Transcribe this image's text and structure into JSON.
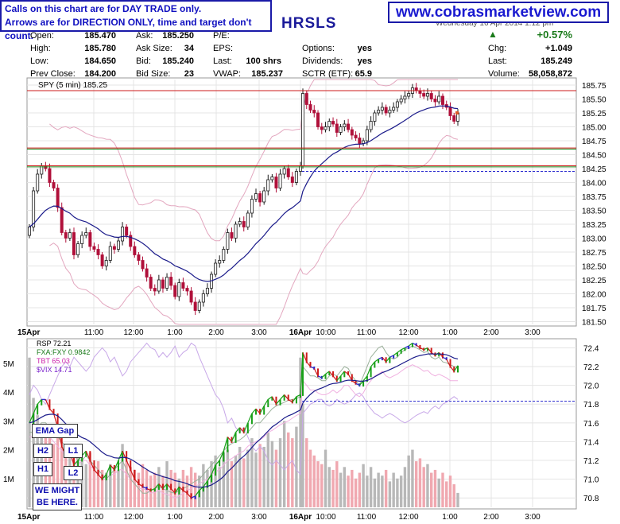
{
  "notes": {
    "line1": "Calls on this chart are for DAY TRADE only.",
    "line2": "Arrows are for DIRECTION ONLY, time and target don't count."
  },
  "site": "www.cobrasmarketview.com",
  "symbol": "HRSLS",
  "header_date": "Wednesday 16 Apr 2014 1:12 pm",
  "quote": {
    "open_l": "Open:",
    "open": "185.470",
    "high_l": "High:",
    "high": "185.780",
    "low_l": "Low:",
    "low": "184.650",
    "prev_l": "Prev Close:",
    "prev": "184.200",
    "ask_l": "Ask:",
    "ask": "185.250",
    "asksize_l": "Ask Size:",
    "asksize": "34",
    "bid_l": "Bid:",
    "bid": "185.240",
    "bidsize_l": "Bid Size:",
    "bidsize": "23",
    "pe_l": "P/E:",
    "eps_l": "EPS:",
    "last_l": "Last:",
    "last": "100 shrs",
    "vwap_l": "VWAP:",
    "vwap": "185.237",
    "options_l": "Options:",
    "options": "yes",
    "div_l": "Dividends:",
    "div": "yes",
    "sctr_l": "SCTR (ETF):",
    "sctr": "65.9",
    "pct": "+0.57%",
    "chg_l": "Chg:",
    "chg": "+1.049",
    "last2_l": "Last:",
    "last2": "185.249",
    "vol_l": "Volume:",
    "vol": "58,058,872"
  },
  "labels": {
    "ema_gap": "EMA Gap",
    "h2": "H2",
    "h1": "H1",
    "l1": "L1",
    "l2": "L2",
    "might1": "WE MIGHT",
    "might2": "BE HERE."
  },
  "colors": {
    "up": "#1a1a1a",
    "down": "#b0103a",
    "ema": "#1a1a8a",
    "bb": "#e3a7bf",
    "resist": "#cc1a1a",
    "support": "#1a8a1a",
    "rsp_up": "#18a018",
    "rsp_down": "#cc1a1a",
    "rsp_mid": "#2222cc"
  },
  "chart_data": [
    {
      "type": "candlestick",
      "title": "SPY (5 min) 185.25",
      "legend": [
        "SPY (5 min) 185.25"
      ],
      "x_ticks": [
        "15Apr",
        "11:00",
        "12:00",
        "1:00",
        "2:00",
        "3:00",
        "16Apr",
        "10:00",
        "11:00",
        "12:00",
        "1:00",
        "2:00",
        "3:00"
      ],
      "y_ticks": [
        181.5,
        181.75,
        182.0,
        182.25,
        182.5,
        182.75,
        183.0,
        183.25,
        183.5,
        183.75,
        184.0,
        184.25,
        184.5,
        184.75,
        185.0,
        185.25,
        185.5,
        185.75
      ],
      "ylim": [
        181.45,
        185.85
      ],
      "h_lines": [
        {
          "value": 185.65,
          "color": "red"
        },
        {
          "value": 184.62,
          "color": "red"
        },
        {
          "value": 184.6,
          "color": "green"
        },
        {
          "value": 184.3,
          "color": "red"
        },
        {
          "value": 184.28,
          "color": "green"
        },
        {
          "value": 184.2,
          "style": "dashed",
          "color": "blue"
        }
      ],
      "close": [
        183.2,
        183.85,
        184.15,
        184.3,
        184.25,
        184.0,
        183.9,
        183.55,
        183.1,
        183.0,
        183.1,
        182.7,
        182.9,
        183.05,
        183.1,
        182.85,
        182.8,
        182.7,
        182.5,
        182.6,
        182.85,
        182.8,
        182.95,
        183.2,
        183.05,
        182.85,
        182.7,
        182.6,
        182.45,
        182.3,
        182.1,
        182.05,
        182.25,
        182.1,
        182.3,
        182.15,
        181.95,
        182.2,
        182.1,
        182.05,
        181.85,
        181.7,
        181.85,
        182.0,
        182.1,
        182.35,
        182.55,
        182.6,
        182.8,
        183.1,
        183.0,
        183.25,
        183.3,
        183.2,
        183.45,
        183.7,
        183.8,
        183.65,
        183.85,
        184.05,
        184.1,
        183.9,
        184.15,
        184.25,
        184.1,
        184.0,
        184.2,
        184.3,
        185.6,
        185.4,
        185.3,
        185.25,
        185.0,
        184.95,
        185.0,
        185.1,
        185.05,
        184.9,
        185.0,
        185.05,
        184.95,
        184.85,
        184.8,
        184.7,
        184.75,
        184.95,
        185.1,
        185.25,
        185.3,
        185.35,
        185.25,
        185.3,
        185.35,
        185.45,
        185.5,
        185.55,
        185.6,
        185.7,
        185.65,
        185.6,
        185.55,
        185.6,
        185.5,
        185.45,
        185.55,
        185.4,
        185.35,
        185.2,
        185.1,
        185.25
      ]
    },
    {
      "type": "line",
      "legend": [
        "RSP 72.21",
        "FXA:FXY 0.9842",
        "TBT 65.03",
        "$VIX 14.71"
      ],
      "x_ticks": [
        "15Apr",
        "11:00",
        "12:00",
        "1:00",
        "2:00",
        "3:00",
        "16Apr",
        "10:00",
        "11:00",
        "12:00",
        "1:00",
        "2:00",
        "3:00"
      ],
      "y_ticks_right": [
        70.8,
        71.0,
        71.2,
        71.4,
        71.6,
        71.8,
        72.0,
        72.2,
        72.4
      ],
      "y_ticks_left": [
        "1M",
        "2M",
        "3M",
        "4M",
        "5M"
      ],
      "ylim": [
        70.7,
        72.48
      ],
      "h_lines": [
        {
          "value": 71.83,
          "style": "dashed",
          "color": "blue"
        }
      ],
      "series": [
        {
          "name": "RSP 72.21",
          "values": [
            71.6,
            71.7,
            71.8,
            71.85,
            71.85,
            71.75,
            71.7,
            71.55,
            71.35,
            71.25,
            71.3,
            71.15,
            71.2,
            71.25,
            71.3,
            71.2,
            71.1,
            71.05,
            71.0,
            71.05,
            71.15,
            71.1,
            71.2,
            71.3,
            71.2,
            71.1,
            71.0,
            70.95,
            70.92,
            70.9,
            70.88,
            70.9,
            70.95,
            70.9,
            70.95,
            70.9,
            70.85,
            70.92,
            70.88,
            70.85,
            70.8,
            70.82,
            70.88,
            70.92,
            70.98,
            71.05,
            71.15,
            71.2,
            71.3,
            71.45,
            71.4,
            71.5,
            71.55,
            71.5,
            71.6,
            71.7,
            71.75,
            71.7,
            71.78,
            71.85,
            71.88,
            71.8,
            71.85,
            71.9,
            71.85,
            71.82,
            71.88,
            71.9,
            72.35,
            72.25,
            72.2,
            72.18,
            72.1,
            72.08,
            72.12,
            72.15,
            72.1,
            72.05,
            72.1,
            72.15,
            72.12,
            72.05,
            72.02,
            72.0,
            72.05,
            72.1,
            72.2,
            72.25,
            72.28,
            72.3,
            72.25,
            72.3,
            72.32,
            72.35,
            72.38,
            72.4,
            72.42,
            72.45,
            72.43,
            72.4,
            72.38,
            72.4,
            72.35,
            72.32,
            72.35,
            72.3,
            72.28,
            72.2,
            72.15,
            72.21
          ]
        },
        {
          "name": "FXA:FXY 0.9842",
          "values": [
            71.5,
            71.5,
            71.55,
            71.6,
            71.6,
            71.55,
            71.5,
            71.45,
            71.4,
            71.35,
            71.3,
            71.25,
            71.2,
            71.2,
            71.25,
            71.2,
            71.15,
            71.1,
            71.05,
            71.0,
            71.05,
            71.1,
            71.15,
            71.2,
            71.1,
            71.0,
            70.95,
            70.9,
            70.85,
            70.85,
            70.88,
            70.9,
            70.92,
            70.9,
            70.88,
            70.86,
            70.85,
            70.88,
            70.9,
            70.92,
            70.95,
            70.98,
            71.0,
            71.05,
            71.1,
            71.15,
            71.2,
            71.25,
            71.3,
            71.35,
            71.38,
            71.4,
            71.42,
            71.45,
            71.5,
            71.55,
            71.6,
            71.6,
            71.65,
            71.7,
            71.75,
            71.78,
            71.8,
            71.82,
            71.84,
            71.85,
            71.86,
            71.88,
            72.2,
            72.15,
            72.1,
            72.1,
            72.08,
            72.05,
            72.05,
            72.1,
            72.12,
            72.1,
            72.15,
            72.2,
            72.18,
            72.1,
            72.05,
            72.0,
            72.1,
            72.2,
            72.3,
            72.35,
            72.4,
            72.42,
            72.35,
            72.3,
            72.28,
            72.3,
            72.35,
            72.38,
            72.4,
            72.42,
            72.4,
            72.38,
            72.35,
            72.36,
            72.3,
            72.28,
            72.3,
            72.25,
            72.24,
            72.22,
            72.2,
            72.2
          ]
        },
        {
          "name": "TBT 65.03",
          "values": [
            71.45,
            71.45,
            71.5,
            71.55,
            71.5,
            71.45,
            71.4,
            71.35,
            71.3,
            71.25,
            71.25,
            71.2,
            71.15,
            71.2,
            71.2,
            71.15,
            71.1,
            71.05,
            71.0,
            71.0,
            71.05,
            71.05,
            71.1,
            71.1,
            71.05,
            71.0,
            70.95,
            70.9,
            70.9,
            70.88,
            70.85,
            70.86,
            70.88,
            70.85,
            70.84,
            70.82,
            70.8,
            70.82,
            70.85,
            70.88,
            70.9,
            70.92,
            70.95,
            70.98,
            71.0,
            71.05,
            71.08,
            71.1,
            71.15,
            71.2,
            71.22,
            71.25,
            71.28,
            71.3,
            71.35,
            71.38,
            71.4,
            71.42,
            71.45,
            71.5,
            71.52,
            71.55,
            71.58,
            71.6,
            71.62,
            71.65,
            71.68,
            71.7,
            72.05,
            72.0,
            71.95,
            71.95,
            71.92,
            71.9,
            71.9,
            71.92,
            71.95,
            71.92,
            71.95,
            72.0,
            72.0,
            71.95,
            71.9,
            71.88,
            71.92,
            72.0,
            72.05,
            72.1,
            72.12,
            72.15,
            72.1,
            72.08,
            72.1,
            72.12,
            72.15,
            72.18,
            72.2,
            72.22,
            72.2,
            72.18,
            72.15,
            72.16,
            72.12,
            72.1,
            72.12,
            72.1,
            72.08,
            72.05,
            72.05,
            72.05
          ]
        },
        {
          "name": "$VIX 14.71",
          "values": [
            71.9,
            72.0,
            71.95,
            71.85,
            71.8,
            71.9,
            72.0,
            72.1,
            72.2,
            72.25,
            72.2,
            72.3,
            72.25,
            72.2,
            72.15,
            72.2,
            72.3,
            72.35,
            72.4,
            72.35,
            72.25,
            72.3,
            72.2,
            72.1,
            72.15,
            72.25,
            72.3,
            72.35,
            72.4,
            72.45,
            72.4,
            72.38,
            72.3,
            72.35,
            72.3,
            72.35,
            72.42,
            72.3,
            72.35,
            72.38,
            72.45,
            72.42,
            72.3,
            72.2,
            72.1,
            72.0,
            71.9,
            71.85,
            71.75,
            71.6,
            71.65,
            71.55,
            71.5,
            71.55,
            71.45,
            71.35,
            71.3,
            71.35,
            71.3,
            71.2,
            71.15,
            71.2,
            71.15,
            71.1,
            71.15,
            71.2,
            71.1,
            71.05,
            71.7,
            71.75,
            71.8,
            71.82,
            71.85,
            71.85,
            71.8,
            71.78,
            71.8,
            71.85,
            71.82,
            71.8,
            71.82,
            71.85,
            71.9,
            71.92,
            71.88,
            71.8,
            71.75,
            71.7,
            71.68,
            71.65,
            71.68,
            71.7,
            71.68,
            71.65,
            71.62,
            71.6,
            71.62,
            71.65,
            71.68,
            71.7,
            71.72,
            71.7,
            71.75,
            71.78,
            71.75,
            71.8,
            71.82,
            71.85,
            71.88,
            71.85
          ]
        }
      ],
      "volume_million": [
        5.2,
        3.8,
        3.2,
        2.6,
        2.8,
        2.4,
        2.2,
        2.6,
        2.1,
        1.9,
        2.0,
        1.6,
        1.8,
        1.7,
        1.5,
        1.9,
        1.4,
        1.6,
        1.3,
        1.2,
        1.5,
        1.4,
        1.3,
        2.2,
        1.6,
        1.4,
        1.3,
        1.2,
        1.5,
        1.3,
        1.1,
        1.2,
        1.4,
        1.1,
        1.6,
        1.3,
        1.2,
        1.0,
        1.3,
        1.1,
        1.4,
        1.2,
        1.1,
        1.5,
        1.3,
        1.6,
        1.8,
        1.4,
        1.9,
        2.0,
        1.6,
        1.8,
        2.1,
        1.7,
        2.0,
        2.4,
        1.9,
        2.2,
        2.1,
        2.6,
        2.3,
        2.0,
        2.4,
        3.0,
        2.6,
        2.4,
        2.8,
        5.2,
        3.6,
        2.4,
        2.0,
        1.8,
        1.6,
        1.5,
        2.0,
        1.4,
        1.3,
        1.6,
        1.2,
        1.4,
        1.1,
        1.3,
        1.0,
        1.2,
        1.5,
        1.1,
        1.4,
        1.0,
        1.2,
        1.1,
        1.3,
        0.9,
        1.2,
        1.0,
        1.1,
        1.4,
        1.8,
        2.0,
        1.6,
        1.7,
        1.4,
        1.5,
        1.2,
        1.3,
        1.0,
        1.2,
        0.9,
        1.1,
        0.8,
        0.5
      ]
    }
  ]
}
